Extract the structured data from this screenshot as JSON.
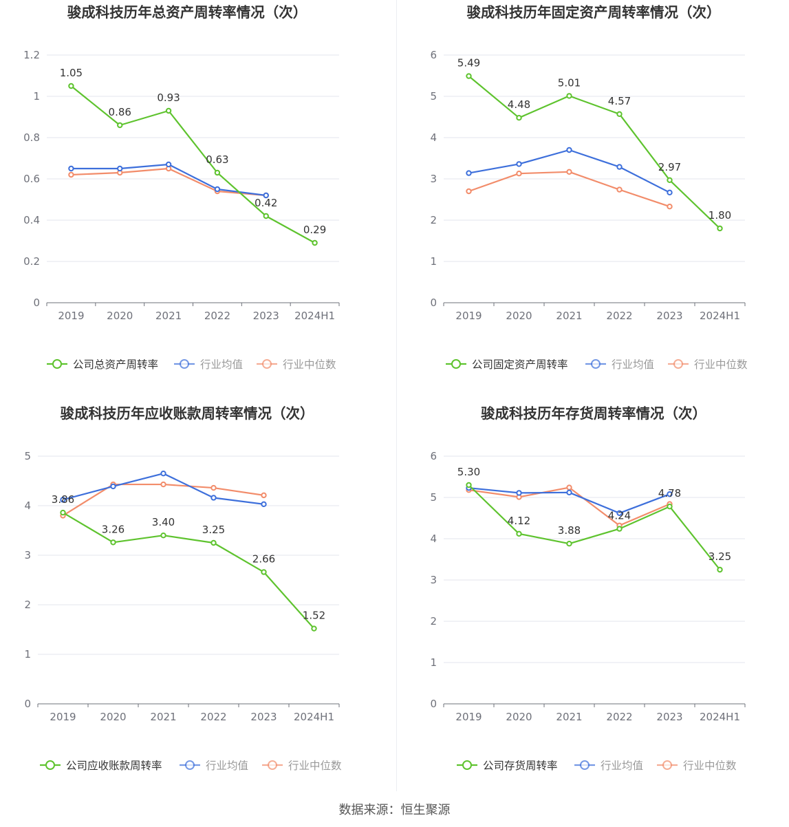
{
  "source": "数据来源：恒生聚源",
  "colors": {
    "company": "#5ec32e",
    "avg": "#3d6fdb",
    "median": "#f28c6a",
    "grid": "#e3e6ee",
    "axis": "#6e7079"
  },
  "chart_data": [
    {
      "type": "line",
      "title": "骏成科技历年总资产周转率情况（次）",
      "categories": [
        "2019",
        "2020",
        "2021",
        "2022",
        "2023",
        "2024H1"
      ],
      "ylim": [
        0,
        1.2
      ],
      "yticks": [
        0,
        0.2,
        0.4,
        0.6,
        0.8,
        1,
        1.2
      ],
      "ytick_labels": [
        "0",
        "0.2",
        "0.4",
        "0.6",
        "0.8",
        "1",
        "1.2"
      ],
      "legend_position": "bottom",
      "series": [
        {
          "name": "公司总资产周转率",
          "values": [
            1.05,
            0.86,
            0.93,
            0.63,
            0.42,
            0.29
          ],
          "labels": [
            "1.05",
            "0.86",
            "0.93",
            "0.63",
            "0.42",
            "0.29"
          ]
        },
        {
          "name": "行业均值",
          "values": [
            0.65,
            0.65,
            0.67,
            0.55,
            0.52,
            null
          ]
        },
        {
          "name": "行业中位数",
          "values": [
            0.62,
            0.63,
            0.65,
            0.54,
            0.52,
            null
          ]
        }
      ]
    },
    {
      "type": "line",
      "title": "骏成科技历年固定资产周转率情况（次）",
      "categories": [
        "2019",
        "2020",
        "2021",
        "2022",
        "2023",
        "2024H1"
      ],
      "ylim": [
        0,
        6
      ],
      "yticks": [
        0,
        1,
        2,
        3,
        4,
        5,
        6
      ],
      "ytick_labels": [
        "0",
        "1",
        "2",
        "3",
        "4",
        "5",
        "6"
      ],
      "legend_position": "bottom",
      "series": [
        {
          "name": "公司固定资产周转率",
          "values": [
            5.49,
            4.48,
            5.01,
            4.57,
            2.97,
            1.8
          ],
          "labels": [
            "5.49",
            "4.48",
            "5.01",
            "4.57",
            "2.97",
            "1.80"
          ]
        },
        {
          "name": "行业均值",
          "values": [
            3.14,
            3.36,
            3.7,
            3.29,
            2.67,
            null
          ]
        },
        {
          "name": "行业中位数",
          "values": [
            2.7,
            3.13,
            3.17,
            2.74,
            2.33,
            null
          ]
        }
      ]
    },
    {
      "type": "line",
      "title": "骏成科技历年应收账款周转率情况（次）",
      "categories": [
        "2019",
        "2020",
        "2021",
        "2022",
        "2023",
        "2024H1"
      ],
      "ylim": [
        0,
        5
      ],
      "yticks": [
        0,
        1,
        2,
        3,
        4,
        5
      ],
      "ytick_labels": [
        "0",
        "1",
        "2",
        "3",
        "4",
        "5"
      ],
      "legend_position": "bottom",
      "series": [
        {
          "name": "公司应收账款周转率",
          "values": [
            3.86,
            3.26,
            3.4,
            3.25,
            2.66,
            1.52
          ],
          "labels": [
            "3.86",
            "3.26",
            "3.40",
            "3.25",
            "2.66",
            "1.52"
          ]
        },
        {
          "name": "行业均值",
          "values": [
            4.12,
            4.39,
            4.65,
            4.16,
            4.03,
            null
          ]
        },
        {
          "name": "行业中位数",
          "values": [
            3.8,
            4.43,
            4.43,
            4.36,
            4.21,
            null
          ]
        }
      ]
    },
    {
      "type": "line",
      "title": "骏成科技历年存货周转率情况（次）",
      "categories": [
        "2019",
        "2020",
        "2021",
        "2022",
        "2023",
        "2024H1"
      ],
      "ylim": [
        0,
        6
      ],
      "yticks": [
        0,
        1,
        2,
        3,
        4,
        5,
        6
      ],
      "ytick_labels": [
        "0",
        "1",
        "2",
        "3",
        "4",
        "5",
        "6"
      ],
      "legend_position": "bottom",
      "series": [
        {
          "name": "公司存货周转率",
          "values": [
            5.3,
            4.12,
            3.88,
            4.24,
            4.78,
            3.25
          ],
          "labels": [
            "5.30",
            "4.12",
            "3.88",
            "4.24",
            "4.78",
            "3.25"
          ]
        },
        {
          "name": "行业均值",
          "values": [
            5.23,
            5.11,
            5.12,
            4.62,
            5.08,
            null
          ]
        },
        {
          "name": "行业中位数",
          "values": [
            5.18,
            5.01,
            5.24,
            4.32,
            4.84,
            null
          ]
        }
      ]
    }
  ]
}
